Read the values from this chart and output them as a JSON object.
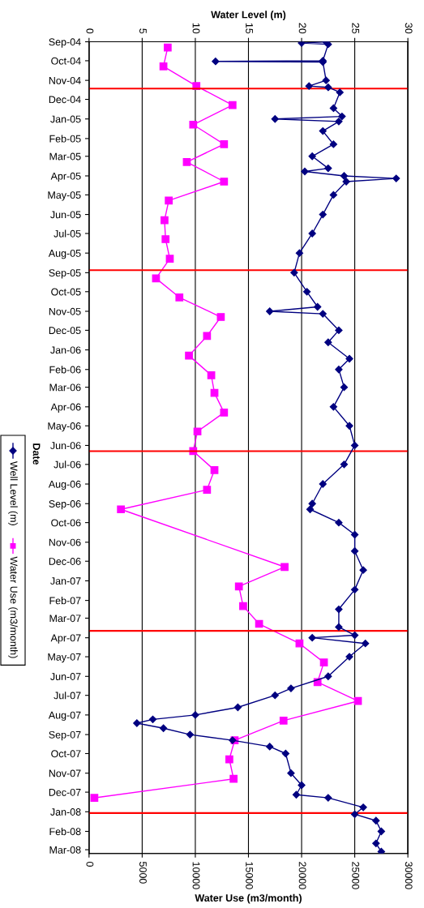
{
  "chart_data": {
    "type": "line",
    "orientation": "horizontal",
    "x2label": "Water Level (m)",
    "xlabel": "Water Use (m3/month)",
    "ylabel": "Date",
    "x2lim": [
      0,
      30
    ],
    "x2ticks": [
      0,
      5,
      10,
      15,
      20,
      25,
      30
    ],
    "xlim": [
      0,
      30000
    ],
    "xticks": [
      0,
      5000,
      10000,
      15000,
      20000,
      25000,
      30000
    ],
    "ylim": [
      "2008-03-07",
      "2004-09-01"
    ],
    "yticks": [
      {
        "value": "2004-09-01",
        "label": "Sep-04"
      },
      {
        "value": "2004-10-01",
        "label": "Oct-04"
      },
      {
        "value": "2004-11-01",
        "label": "Nov-04"
      },
      {
        "value": "2004-12-01",
        "label": "Dec-04"
      },
      {
        "value": "2005-01-01",
        "label": "Jan-05"
      },
      {
        "value": "2005-02-01",
        "label": "Feb-05"
      },
      {
        "value": "2005-03-01",
        "label": "Mar-05"
      },
      {
        "value": "2005-04-01",
        "label": "Apr-05"
      },
      {
        "value": "2005-05-01",
        "label": "May-05"
      },
      {
        "value": "2005-06-01",
        "label": "Jun-05"
      },
      {
        "value": "2005-07-01",
        "label": "Jul-05"
      },
      {
        "value": "2005-08-01",
        "label": "Aug-05"
      },
      {
        "value": "2005-09-01",
        "label": "Sep-05"
      },
      {
        "value": "2005-10-01",
        "label": "Oct-05"
      },
      {
        "value": "2005-11-01",
        "label": "Nov-05"
      },
      {
        "value": "2005-12-01",
        "label": "Dec-05"
      },
      {
        "value": "2006-01-01",
        "label": "Jan-06"
      },
      {
        "value": "2006-02-01",
        "label": "Feb-06"
      },
      {
        "value": "2006-03-01",
        "label": "Mar-06"
      },
      {
        "value": "2006-04-01",
        "label": "Apr-06"
      },
      {
        "value": "2006-05-01",
        "label": "May-06"
      },
      {
        "value": "2006-06-01",
        "label": "Jun-06"
      },
      {
        "value": "2006-07-01",
        "label": "Jul-06"
      },
      {
        "value": "2006-08-01",
        "label": "Aug-06"
      },
      {
        "value": "2006-09-01",
        "label": "Sep-06"
      },
      {
        "value": "2006-10-01",
        "label": "Oct-06"
      },
      {
        "value": "2006-11-01",
        "label": "Nov-06"
      },
      {
        "value": "2006-12-01",
        "label": "Dec-06"
      },
      {
        "value": "2007-01-01",
        "label": "Jan-07"
      },
      {
        "value": "2007-02-01",
        "label": "Feb-07"
      },
      {
        "value": "2007-03-01",
        "label": "Mar-07"
      },
      {
        "value": "2007-04-01",
        "label": "Apr-07"
      },
      {
        "value": "2007-05-01",
        "label": "May-07"
      },
      {
        "value": "2007-06-01",
        "label": "Jun-07"
      },
      {
        "value": "2007-07-01",
        "label": "Jul-07"
      },
      {
        "value": "2007-08-01",
        "label": "Aug-07"
      },
      {
        "value": "2007-09-01",
        "label": "Sep-07"
      },
      {
        "value": "2007-10-01",
        "label": "Oct-07"
      },
      {
        "value": "2007-11-01",
        "label": "Nov-07"
      },
      {
        "value": "2007-12-01",
        "label": "Dec-07"
      },
      {
        "value": "2008-01-01",
        "label": "Jan-08"
      },
      {
        "value": "2008-02-01",
        "label": "Feb-08"
      },
      {
        "value": "2008-03-01",
        "label": "Mar-08"
      }
    ],
    "grid": "x",
    "legend": "left",
    "line_style": "solid",
    "ref_lines": [
      {
        "axis": "y",
        "value": "2004-11-14",
        "color": "#ff0000"
      },
      {
        "axis": "y",
        "value": "2005-08-28",
        "color": "#ff0000"
      },
      {
        "axis": "y",
        "value": "2006-06-10",
        "color": "#ff0000"
      },
      {
        "axis": "y",
        "value": "2007-03-21",
        "color": "#ff0000"
      },
      {
        "axis": "y",
        "value": "2008-01-03",
        "color": "#ff0000"
      }
    ],
    "series": [
      {
        "name": "Well Level (m)",
        "color": "#000080",
        "axis": "x2",
        "marker": "diamond",
        "x": [
          "2004-09-01",
          "2004-09-03",
          "2004-09-05",
          "2004-10-01",
          "2004-10-02",
          "2004-10-03",
          "2004-11-01",
          "2004-11-10",
          "2004-11-12",
          "2004-11-20",
          "2004-12-15",
          "2004-12-28",
          "2005-01-01",
          "2005-01-05",
          "2005-01-20",
          "2005-02-10",
          "2005-03-01",
          "2005-03-20",
          "2005-03-25",
          "2005-04-01",
          "2005-04-05",
          "2005-04-10",
          "2005-05-01",
          "2005-06-01",
          "2005-07-01",
          "2005-08-01",
          "2005-09-01",
          "2005-10-01",
          "2005-10-25",
          "2005-11-01",
          "2005-11-05",
          "2005-12-01",
          "2005-12-20",
          "2006-01-15",
          "2006-02-01",
          "2006-03-01",
          "2006-04-01",
          "2006-05-01",
          "2006-06-01",
          "2006-07-01",
          "2006-08-01",
          "2006-09-01",
          "2006-09-10",
          "2006-10-01",
          "2006-10-20",
          "2006-11-15",
          "2006-12-15",
          "2007-01-15",
          "2007-02-15",
          "2007-03-15",
          "2007-03-28",
          "2007-04-01",
          "2007-04-10",
          "2007-05-01",
          "2007-06-01",
          "2007-06-20",
          "2007-07-01",
          "2007-07-20",
          "2007-08-01",
          "2007-08-08",
          "2007-08-14",
          "2007-08-22",
          "2007-09-01",
          "2007-09-10",
          "2007-09-20",
          "2007-10-01",
          "2007-11-01",
          "2007-11-20",
          "2007-12-05",
          "2007-12-10",
          "2007-12-25",
          "2008-01-05",
          "2008-01-15",
          "2008-02-01",
          "2008-02-20",
          "2008-03-04"
        ],
        "values": [
          22.3,
          20.0,
          22.5,
          22.0,
          11.9,
          22.0,
          22.3,
          20.7,
          22.5,
          23.6,
          23.0,
          23.8,
          17.5,
          23.5,
          22.0,
          23.0,
          21.0,
          22.5,
          20.3,
          24.0,
          28.9,
          24.2,
          23.0,
          22.0,
          21.0,
          19.8,
          19.3,
          20.5,
          21.5,
          17.0,
          22.0,
          23.5,
          22.5,
          24.5,
          23.5,
          24.0,
          23.0,
          24.5,
          25.0,
          24.0,
          22.0,
          21.0,
          20.8,
          23.5,
          25.0,
          25.0,
          25.8,
          25.0,
          23.5,
          23.5,
          25.0,
          21.0,
          26.0,
          24.5,
          22.5,
          19.0,
          17.5,
          14.0,
          10.0,
          6.0,
          4.5,
          7.0,
          9.5,
          13.5,
          17.0,
          18.5,
          19.0,
          20.0,
          19.5,
          22.5,
          25.8,
          25.0,
          27.0,
          27.5,
          27.0,
          27.5
        ]
      },
      {
        "name": "Water Use (m3/month)",
        "color": "#ff00ff",
        "marker": "square",
        "x": [
          "2004-09-10",
          "2004-10-10",
          "2004-11-10",
          "2004-12-10",
          "2005-01-10",
          "2005-02-10",
          "2005-03-10",
          "2005-04-10",
          "2005-05-10",
          "2005-06-10",
          "2005-07-10",
          "2005-08-10",
          "2005-09-10",
          "2005-10-10",
          "2005-11-10",
          "2005-12-10",
          "2006-01-10",
          "2006-02-10",
          "2006-03-10",
          "2006-04-10",
          "2006-05-10",
          "2006-06-10",
          "2006-07-10",
          "2006-08-10",
          "2006-09-10",
          "2006-12-10",
          "2007-01-10",
          "2007-02-10",
          "2007-03-10",
          "2007-04-10",
          "2007-05-10",
          "2007-06-10",
          "2007-07-10",
          "2007-08-10",
          "2007-09-10",
          "2007-10-10",
          "2007-11-10",
          "2007-12-10"
        ],
        "values": [
          7400,
          7000,
          10100,
          13500,
          9800,
          12700,
          9200,
          12700,
          7500,
          7100,
          7200,
          7600,
          6300,
          8500,
          12400,
          11100,
          9400,
          11500,
          11800,
          12700,
          10200,
          9800,
          11800,
          11100,
          3000,
          18400,
          14100,
          14500,
          16000,
          19800,
          22100,
          21500,
          25300,
          18300,
          13700,
          13200,
          13600,
          500
        ]
      }
    ]
  }
}
